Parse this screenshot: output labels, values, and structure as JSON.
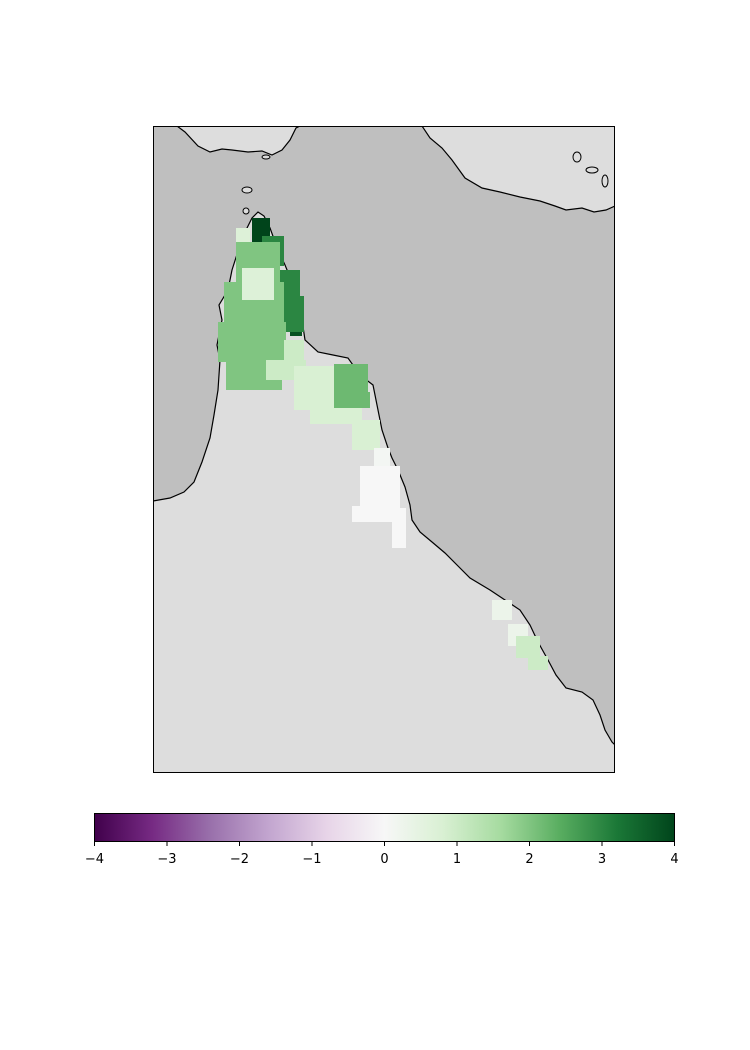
{
  "map": {
    "colors": {
      "land": "#dddddd",
      "ocean": "#bfbfbf",
      "coastline": "#000000",
      "frame": "#000000"
    },
    "colormap": "PRGn",
    "data_range": [
      -4,
      4
    ],
    "grid_cells": [
      {
        "value": 4.0,
        "region": "cape-york-tip"
      },
      {
        "value": 3.8,
        "region": "cape-york-east"
      },
      {
        "value": 3.0,
        "region": "cape-york-north"
      },
      {
        "value": 2.0,
        "region": "cape-york-west"
      },
      {
        "value": 1.0,
        "region": "cape-york-south"
      },
      {
        "value": 0.7,
        "region": "cape-york-center"
      },
      {
        "value": 2.2,
        "region": "cooktown-coast"
      },
      {
        "value": 0.8,
        "region": "cairns-coast"
      },
      {
        "value": 0.1,
        "region": "townsville-coast"
      },
      {
        "value": 0.0,
        "region": "inland-townsville"
      },
      {
        "value": 0.3,
        "region": "mackay-coast"
      },
      {
        "value": 1.0,
        "region": "rockhampton-coast"
      }
    ]
  },
  "colorbar": {
    "ticks": [
      "−4",
      "−3",
      "−2",
      "−1",
      "0",
      "1",
      "2",
      "3",
      "4"
    ],
    "stops": [
      "#40004b",
      "#762a83",
      "#9970ab",
      "#c2a5cf",
      "#e7d4e8",
      "#f7f7f7",
      "#d9f0d3",
      "#a6dba0",
      "#5aae61",
      "#1b7837",
      "#00441b"
    ]
  }
}
